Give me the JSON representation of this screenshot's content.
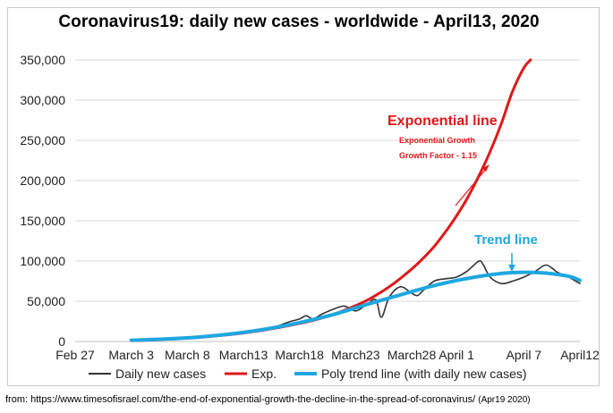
{
  "chart_data": {
    "type": "line",
    "title": "Coronavirus19: daily new cases - worldwide - April13, 2020",
    "x_tick_labels": [
      "Feb 27",
      "March 3",
      "March 8",
      "March13",
      "March18",
      "March23",
      "March28",
      "April 1",
      "April 7",
      "April12"
    ],
    "x_tick_days": [
      0,
      5,
      10,
      15,
      20,
      25,
      30,
      34,
      40,
      45
    ],
    "y_tick_labels": [
      "0",
      "50,000",
      "100,000",
      "150,000",
      "200,000",
      "250,000",
      "300,000",
      "350,000"
    ],
    "y_tick_values": [
      0,
      50000,
      100000,
      150000,
      200000,
      250000,
      300000,
      350000
    ],
    "ylim": [
      0,
      350000
    ],
    "xlim": [
      0,
      45
    ],
    "grid": true,
    "series": [
      {
        "name": "Daily new cases",
        "color": "#333333",
        "x": [
          5,
          6,
          7,
          8,
          9,
          10,
          11,
          12,
          13,
          14,
          15,
          16,
          17,
          18,
          19,
          20,
          20.6,
          21.2,
          22,
          23,
          24,
          25,
          26,
          26.8,
          27.3,
          28,
          29,
          30,
          30.5,
          31,
          32,
          33,
          34,
          35,
          36,
          36.4,
          37,
          38,
          39,
          40,
          41,
          42,
          43,
          44,
          45
        ],
        "values": [
          1000,
          1500,
          2000,
          2500,
          3000,
          3500,
          4500,
          5500,
          7000,
          9000,
          11000,
          13000,
          16000,
          19000,
          24000,
          28000,
          32000,
          28000,
          34000,
          40000,
          44000,
          38000,
          46000,
          52000,
          30000,
          55000,
          68000,
          60000,
          57000,
          63000,
          75000,
          78000,
          80000,
          88000,
          100000,
          95000,
          80000,
          72000,
          75000,
          80000,
          87000,
          95000,
          86000,
          80000,
          72000
        ]
      },
      {
        "name": "Exp.",
        "color": "#e01818",
        "x": [
          5,
          7,
          9,
          11,
          13,
          15,
          17,
          19,
          21,
          23,
          25,
          26,
          27,
          28,
          29,
          30,
          31,
          32,
          33,
          34,
          35,
          36,
          37,
          38,
          39,
          40,
          40.6
        ],
        "values": [
          1000,
          2000,
          3500,
          5500,
          7500,
          10500,
          14500,
          19500,
          25500,
          33500,
          44500,
          51000,
          59000,
          68000,
          78500,
          90000,
          103000,
          118000,
          136000,
          156000,
          179000,
          206000,
          236000,
          271000,
          311000,
          340000,
          350000
        ]
      },
      {
        "name": "Poly trend line (with daily new cases)",
        "color": "#1ea7e0",
        "x": [
          5,
          8,
          11,
          14,
          17,
          20,
          23,
          26,
          29,
          32,
          35,
          38,
          40,
          42,
          44,
          45
        ],
        "values": [
          1500,
          3000,
          5500,
          9500,
          15500,
          23500,
          33500,
          46000,
          58000,
          69500,
          78500,
          84500,
          86000,
          85000,
          81000,
          76000
        ]
      }
    ],
    "annotations": {
      "exp_label": "Exponential line",
      "exp_sub1": "Exponential Growth",
      "exp_sub2": "Growth Factor - 1.15",
      "trend_label": "Trend line"
    },
    "legend": {
      "position": "bottom",
      "entries": [
        "Daily new cases",
        "Exp.",
        "Poly trend line (with daily new cases)"
      ]
    }
  },
  "source": {
    "text": "from: https://www.timesofisrael.com/the-end-of-exponential-growth-the-decline-in-the-spread-of-coronavirus/",
    "date": "(Apr19 2020)"
  }
}
